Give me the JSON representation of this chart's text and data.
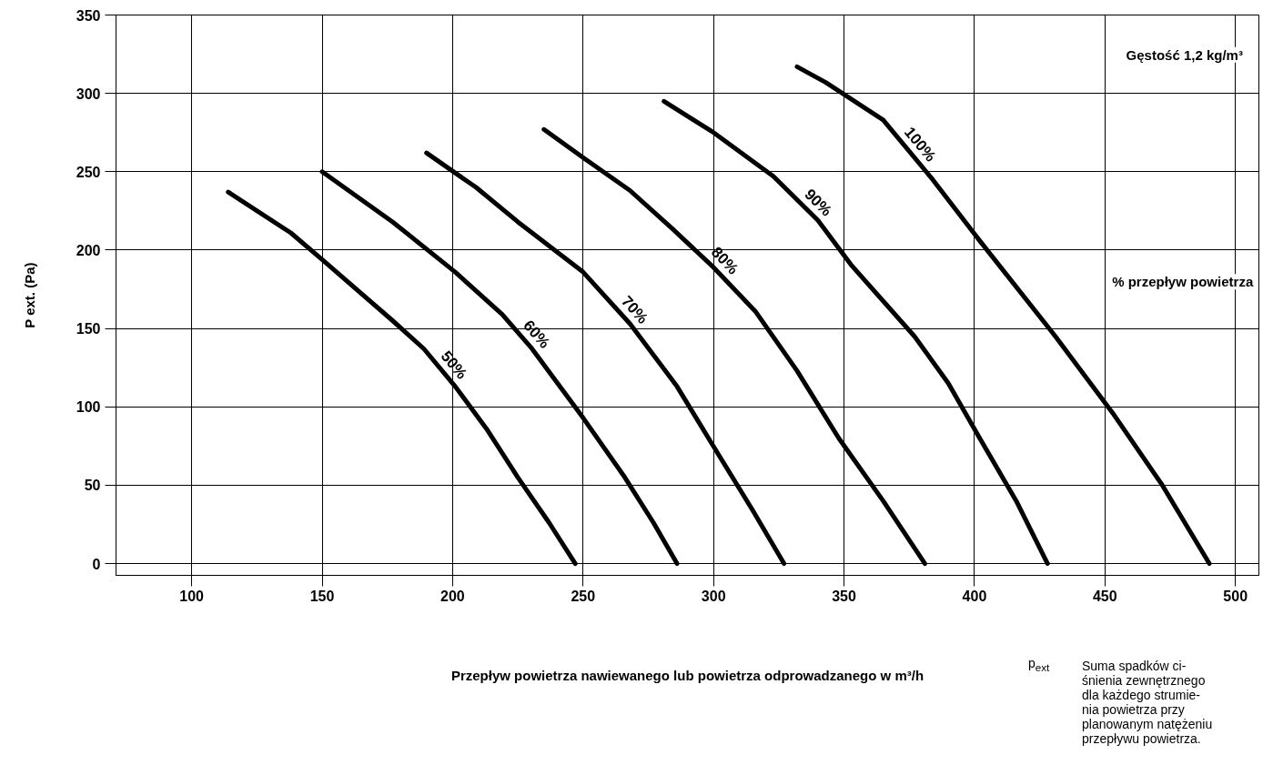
{
  "chart_data": {
    "type": "line",
    "xlabel": "Przepływ powietrza nawiewanego lub powietrza odprowadzanego w m³/h",
    "ylabel": "P ext. (Pa)",
    "xlim": [
      71,
      509
    ],
    "ylim": [
      -7.5,
      350
    ],
    "xticks": [
      100,
      150,
      200,
      250,
      300,
      350,
      400,
      450,
      500
    ],
    "yticks": [
      0,
      50,
      100,
      150,
      200,
      250,
      300,
      350
    ],
    "grid": true,
    "series": [
      {
        "name": "50%",
        "color": "#000000",
        "x": [
          114,
          138,
          150,
          177,
          189,
          201,
          213,
          225,
          237,
          247
        ],
        "values": [
          237,
          211,
          194,
          155,
          137,
          113,
          86,
          55,
          26,
          0
        ]
      },
      {
        "name": "60%",
        "color": "#000000",
        "x": [
          150,
          177,
          201,
          219,
          230,
          250,
          266,
          277,
          286
        ],
        "values": [
          250,
          218,
          186,
          159,
          138,
          93,
          55,
          26,
          0
        ]
      },
      {
        "name": "70%",
        "color": "#000000",
        "x": [
          190,
          209,
          225,
          250,
          268,
          286,
          301,
          315,
          327
        ],
        "values": [
          262,
          240,
          218,
          186,
          153,
          113,
          72,
          34,
          0
        ]
      },
      {
        "name": "80%",
        "color": "#000000",
        "x": [
          235,
          250,
          268,
          284,
          300,
          316,
          332,
          348,
          365,
          381
        ],
        "values": [
          277,
          259,
          238,
          214,
          189,
          161,
          123,
          80,
          40,
          0
        ]
      },
      {
        "name": "90%",
        "color": "#000000",
        "x": [
          281,
          300,
          323,
          340,
          353,
          377,
          390,
          402,
          416,
          428
        ],
        "values": [
          295,
          275,
          247,
          219,
          190,
          145,
          115,
          80,
          40,
          0
        ]
      },
      {
        "name": "100%",
        "color": "#000000",
        "x": [
          332,
          343,
          365,
          384,
          402,
          431,
          453,
          472,
          490
        ],
        "values": [
          317,
          307,
          283,
          245,
          206,
          145,
          96,
          50,
          0
        ]
      }
    ],
    "annotations": [
      "Gęstość 1,2 kg/m³",
      "% przepływ powietrza",
      "p$_{ext}$",
      "Suma spadków ci-\nśnienia zewnętrznego\ndla każdego strumie-\nnia powietrza przy\nplanowanym natężeniu\nprzepływu powietrza."
    ]
  }
}
